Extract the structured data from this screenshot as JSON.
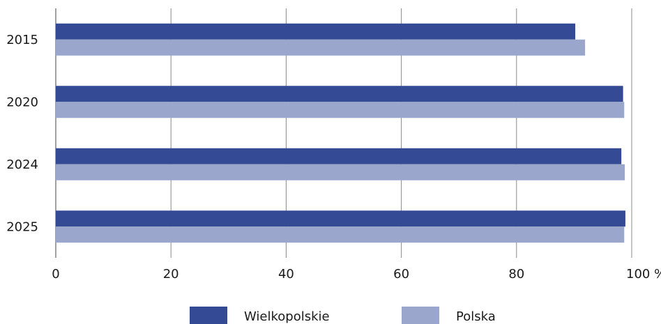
{
  "chart_data": {
    "type": "hbar",
    "categories": [
      "2015",
      "2020",
      "2024",
      "2025"
    ],
    "series": [
      {
        "name": "Wielkopolskie",
        "color": "#354a94",
        "values": [
          90.2,
          98.5,
          98.2,
          98.9
        ]
      },
      {
        "name": "Polska",
        "color": "#9aa6cb",
        "values": [
          91.9,
          98.7,
          98.8,
          98.7
        ]
      }
    ],
    "xlim": [
      0,
      100
    ],
    "xticks": [
      0,
      20,
      40,
      60,
      80,
      {
        "value": 100,
        "label": "100 %"
      }
    ],
    "grid": true,
    "legend": "bottom"
  }
}
